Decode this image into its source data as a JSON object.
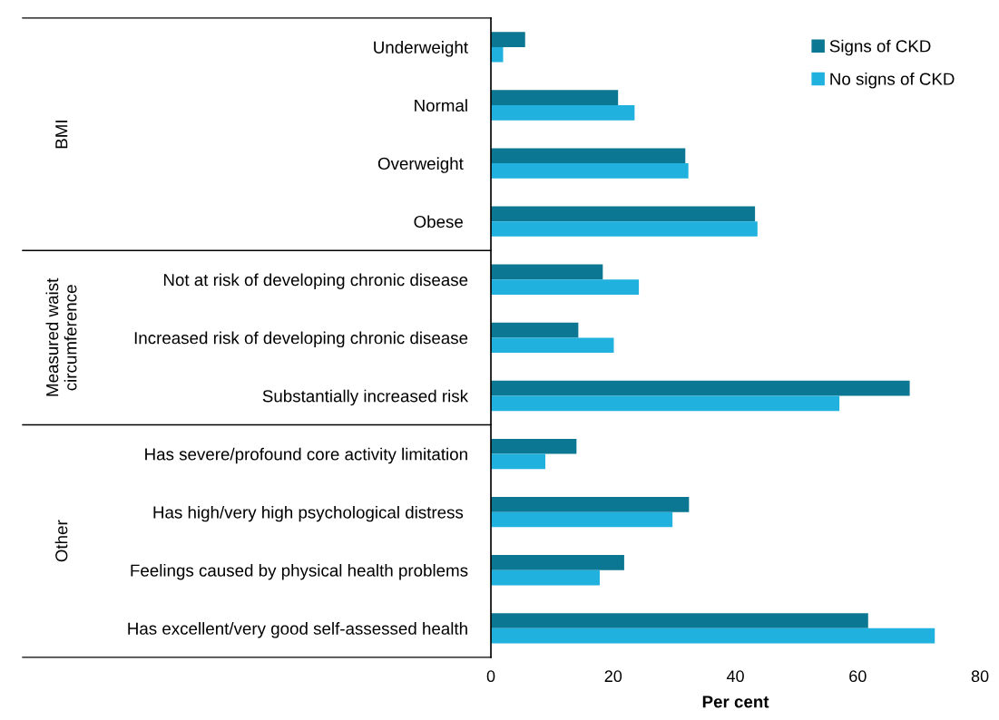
{
  "chart_data": {
    "type": "bar",
    "orientation": "horizontal",
    "xlabel": "Per cent",
    "categories": [
      "Underweight",
      "Normal",
      "Overweight ",
      "Obese ",
      "Not at risk of developing chronic disease",
      "Increased risk of developing chronic disease",
      "Substantially increased risk",
      "Has severe/profound core activity limitation",
      "Has high/very high psychological distress ",
      "Feelings caused by physical health problems",
      "Has excellent/very good self-assessed health"
    ],
    "series": [
      {
        "name": "Signs of CKD",
        "color": "#0c7792",
        "values": [
          5.6,
          20.8,
          31.8,
          43.2,
          18.3,
          14.3,
          68.5,
          14.0,
          32.4,
          21.8,
          61.7
        ]
      },
      {
        "name": "No signs of CKD",
        "color": "#21b1de",
        "values": [
          2.0,
          23.5,
          32.3,
          43.6,
          24.2,
          20.1,
          57.0,
          8.9,
          29.7,
          17.8,
          72.6
        ]
      }
    ],
    "annotations": [
      "BMI",
      "Measured waist\ncircumference",
      "Other"
    ],
    "xlim": [
      0,
      80
    ],
    "xticks": [
      0,
      20,
      40,
      60,
      80
    ],
    "grid": false,
    "legend": "top right"
  }
}
